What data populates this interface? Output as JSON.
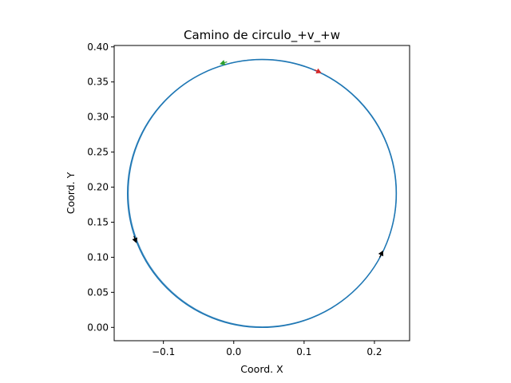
{
  "chart_data": {
    "type": "line",
    "title": "Camino de circulo_+v_+w",
    "xlabel": "Coord. X",
    "ylabel": "Coord. Y",
    "xlim": [
      -0.17,
      0.25
    ],
    "ylim": [
      -0.019,
      0.402
    ],
    "x_ticks": [
      -0.1,
      0.0,
      0.1,
      0.2
    ],
    "x_tick_labels": [
      "−0.1",
      "0.0",
      "0.1",
      "0.2"
    ],
    "y_ticks": [
      0.0,
      0.05,
      0.1,
      0.15,
      0.2,
      0.25,
      0.3,
      0.35,
      0.4
    ],
    "y_tick_labels": [
      "0.00",
      "0.05",
      "0.10",
      "0.15",
      "0.20",
      "0.25",
      "0.30",
      "0.35",
      "0.40"
    ],
    "grid": false,
    "aspect": "equal",
    "series": [
      {
        "color": "#1f77b4",
        "shape": "circle",
        "center": [
          0.04,
          0.191
        ],
        "radius": 0.191
      }
    ],
    "markers": [
      {
        "label": "start",
        "x": 0.12,
        "y": 0.365,
        "color": "#d62728",
        "direction": "clockwise"
      },
      {
        "label": "end",
        "x": -0.015,
        "y": 0.377,
        "color": "#2ca02c",
        "direction": "counterclockwise"
      },
      {
        "label": "heading",
        "x": 0.21,
        "y": 0.105,
        "color": "#000000",
        "direction": "counterclockwise"
      },
      {
        "label": "heading",
        "x": -0.14,
        "y": 0.125,
        "color": "#000000",
        "direction": "counterclockwise"
      }
    ]
  }
}
